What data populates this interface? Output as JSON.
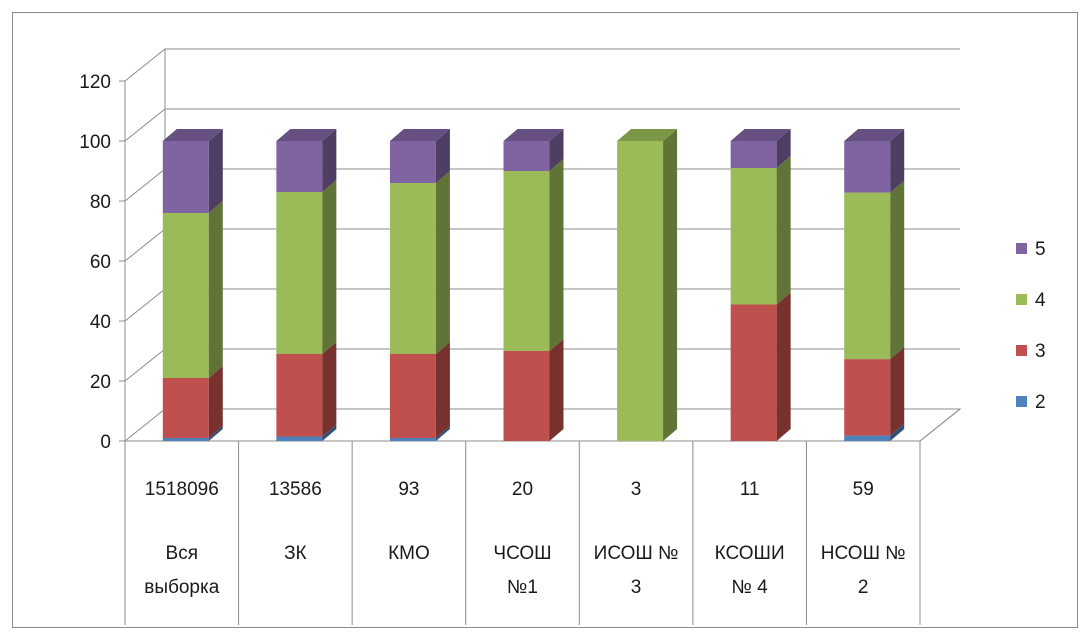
{
  "chart_data": {
    "type": "bar",
    "stacked": true,
    "three_d": true,
    "ylim": [
      0,
      120
    ],
    "yticks": [
      0,
      20,
      40,
      60,
      80,
      100,
      120
    ],
    "grid": true,
    "legend_position": "right",
    "categories": [
      {
        "count": "1518096",
        "name_lines": [
          "Вся",
          "выборка"
        ]
      },
      {
        "count": "13586",
        "name_lines": [
          "ЗК"
        ]
      },
      {
        "count": "93",
        "name_lines": [
          "КМО"
        ]
      },
      {
        "count": "20",
        "name_lines": [
          "ЧСОШ",
          "№1"
        ]
      },
      {
        "count": "3",
        "name_lines": [
          "ИСОШ №",
          "3"
        ]
      },
      {
        "count": "11",
        "name_lines": [
          "КСОШИ",
          "№ 4"
        ]
      },
      {
        "count": "59",
        "name_lines": [
          "НСОШ №",
          "2"
        ]
      }
    ],
    "series": [
      {
        "name": "2",
        "color": "#4f81bd",
        "values": [
          1,
          1.5,
          1,
          0,
          0,
          0,
          1.8
        ]
      },
      {
        "name": "3",
        "color": "#c0504d",
        "values": [
          20,
          27.5,
          28,
          30,
          0,
          45.5,
          25.5
        ]
      },
      {
        "name": "4",
        "color": "#9bbb59",
        "values": [
          55,
          54,
          57,
          60,
          100,
          45.5,
          55.5
        ]
      },
      {
        "name": "5",
        "color": "#8064a2",
        "values": [
          24,
          17,
          14,
          10,
          0,
          9,
          17.2
        ]
      }
    ]
  }
}
